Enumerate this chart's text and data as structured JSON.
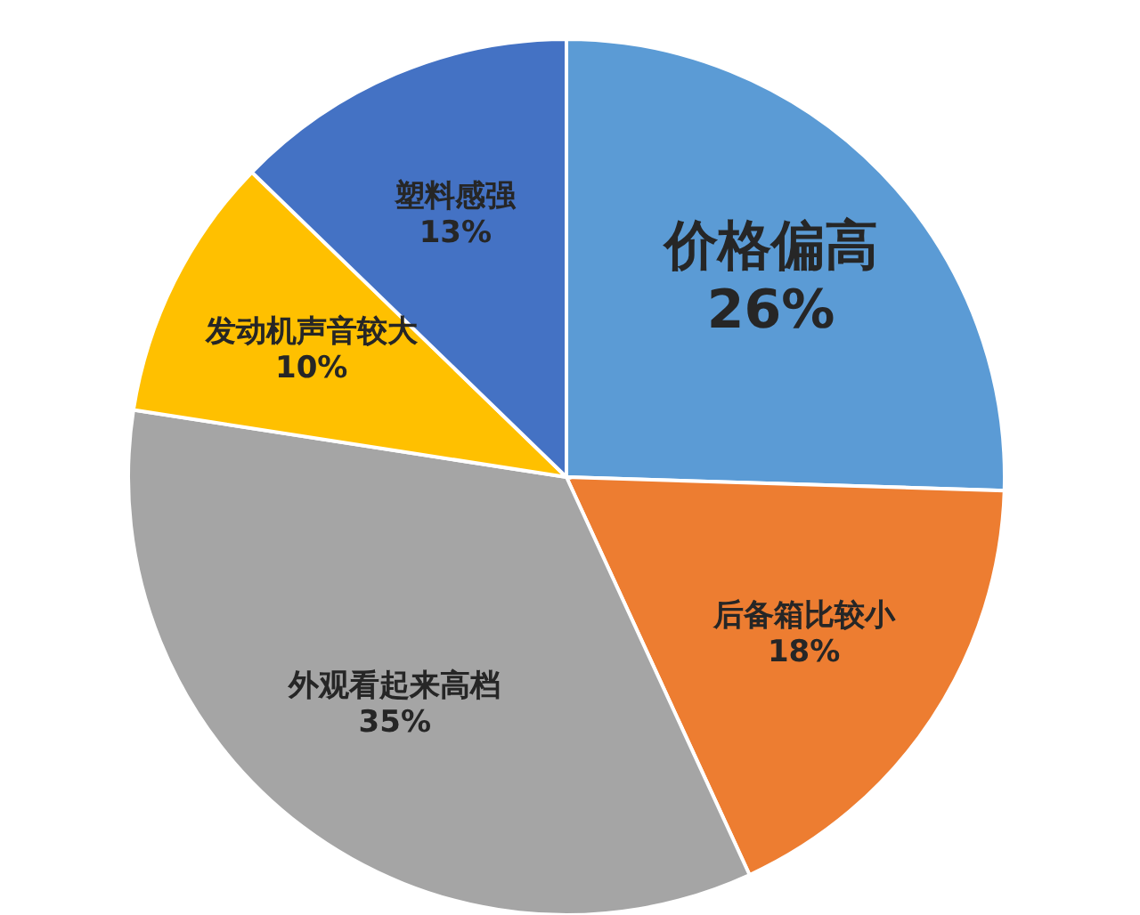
{
  "chart_data": {
    "type": "pie",
    "categories": [
      "价格偏高",
      "后备箱比较小",
      "外观看起来高档",
      "发动机声音较大",
      "塑料感强"
    ],
    "values": [
      26,
      18,
      35,
      10,
      13
    ],
    "value_labels": [
      "26%",
      "18%",
      "35%",
      "10%",
      "13%"
    ],
    "colors": [
      "#5b9bd5",
      "#ed7d31",
      "#a5a5a5",
      "#ffc000",
      "#4472c4"
    ]
  }
}
